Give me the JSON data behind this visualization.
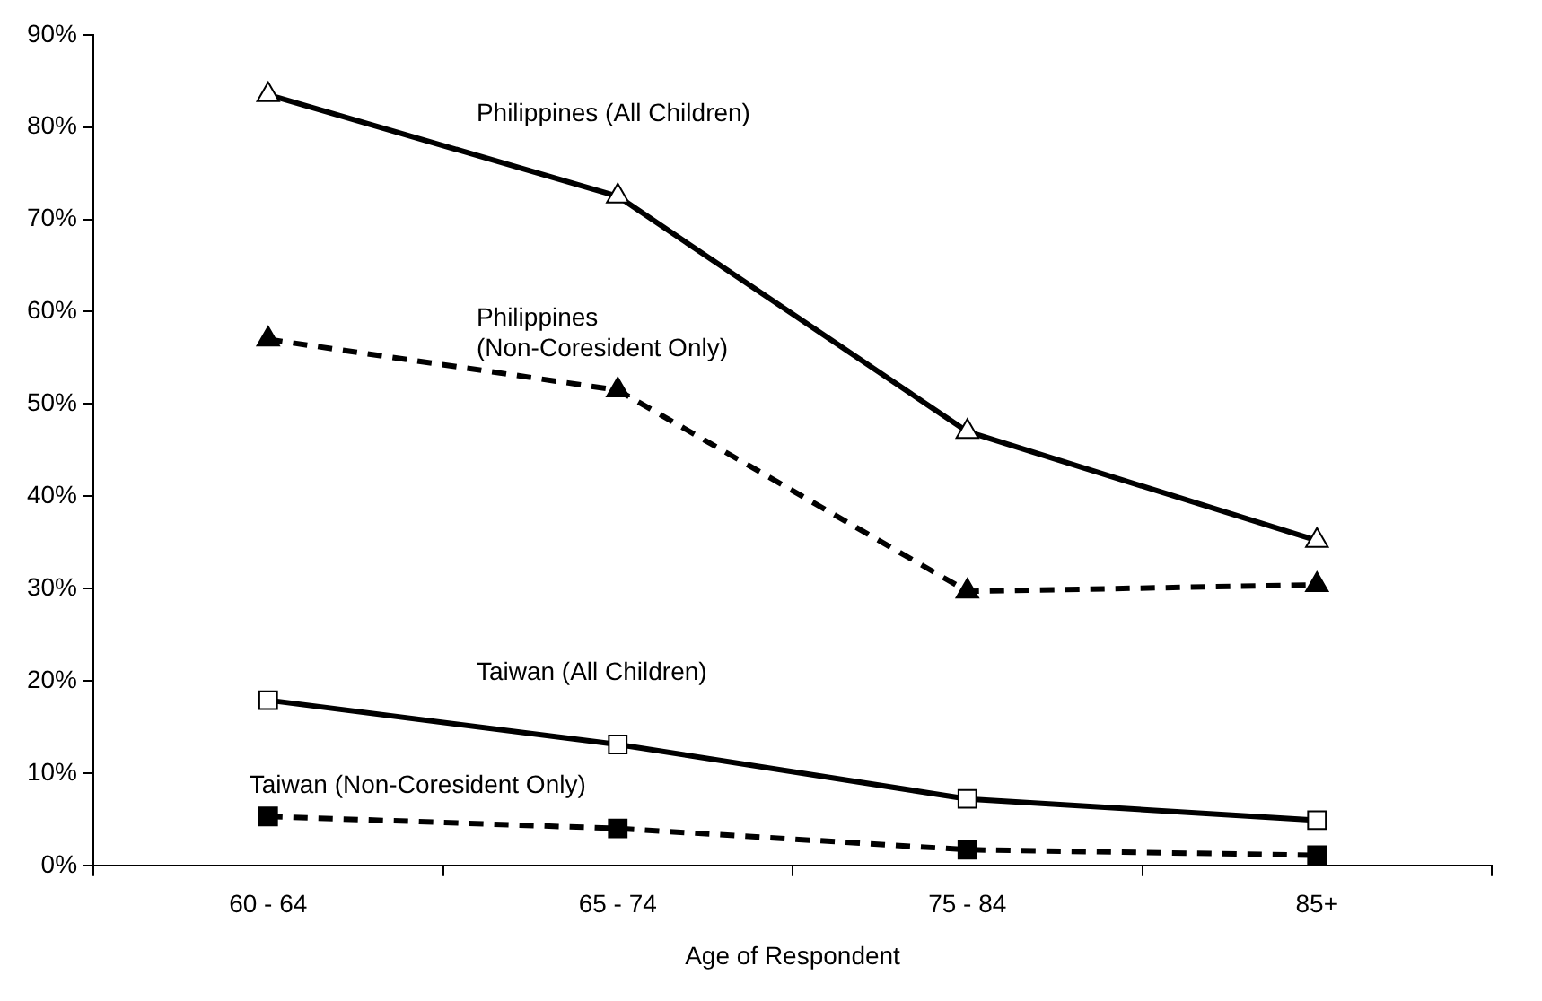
{
  "chart_data": {
    "type": "line",
    "xlabel": "Age of Respondent",
    "categories": [
      "60 - 64",
      "65 - 74",
      "75 - 84",
      "85+"
    ],
    "ylim": [
      0,
      90
    ],
    "yticks": [
      {
        "value": 0,
        "label": "0%"
      },
      {
        "value": 10,
        "label": "10%"
      },
      {
        "value": 20,
        "label": "20%"
      },
      {
        "value": 30,
        "label": "30%"
      },
      {
        "value": 40,
        "label": "40%"
      },
      {
        "value": 50,
        "label": "50%"
      },
      {
        "value": 60,
        "label": "60%"
      },
      {
        "value": 70,
        "label": "70%"
      },
      {
        "value": 80,
        "label": "80%"
      },
      {
        "value": 90,
        "label": "90%"
      }
    ],
    "grid": false,
    "legend": false,
    "series": [
      {
        "name": "Philippines (All Children)",
        "color": "#000000",
        "marker": "triangle",
        "line_style": "solid",
        "values": [
          83.5,
          72.5,
          47.0,
          35.2
        ]
      },
      {
        "name": "Philippines (Non-Coresident Only)",
        "color": "#000000",
        "marker": "triangle",
        "line_style": "dashed",
        "values": [
          57.0,
          51.5,
          29.7,
          30.4
        ]
      },
      {
        "name": "Taiwan (All Children)",
        "color": "#000000",
        "marker": "square",
        "line_style": "solid",
        "values": [
          17.9,
          13.1,
          7.2,
          4.9
        ]
      },
      {
        "name": "Taiwan (Non-Coresident Only)",
        "color": "#000000",
        "marker": "square",
        "line_style": "dashed",
        "values": [
          5.3,
          4.0,
          1.7,
          1.1
        ]
      }
    ]
  }
}
